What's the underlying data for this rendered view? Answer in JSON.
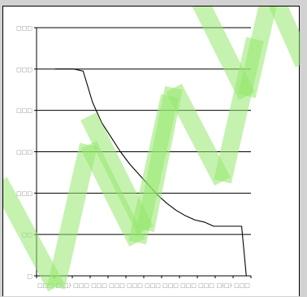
{
  "chart_data": {
    "type": "line",
    "title": "",
    "xlabel": "",
    "ylabel": "",
    "y_tick_labels": [
      "□",
      "□□",
      "□□□",
      "□□□",
      "□□□",
      "□□□",
      "□□□"
    ],
    "x_tick_labels": [
      "□□□",
      "□(□)",
      "□□□",
      "□□□",
      "□□□",
      "□□□",
      "□□□",
      "□□□",
      "□□□",
      "□□□",
      "□(□)",
      "□□□"
    ],
    "x": [
      0,
      0.5,
      1,
      1.5,
      2,
      2.5,
      3,
      3.5,
      4,
      4.5,
      5,
      5.5,
      6,
      6.5,
      7,
      7.5,
      8,
      8.5,
      9,
      9.5,
      10,
      10.25,
      10.5
    ],
    "series": [
      {
        "name": "",
        "values": [
          5,
          5,
          5,
          4.95,
          4.2,
          3.7,
          3.35,
          3.0,
          2.7,
          2.45,
          2.2,
          1.95,
          1.75,
          1.58,
          1.45,
          1.35,
          1.3,
          1.2,
          1.2,
          1.2,
          1.2,
          0.0,
          0.0
        ]
      }
    ],
    "xlim": [
      -1,
      10.5
    ],
    "ylim": [
      0,
      6
    ],
    "grid": "horizontal",
    "legend": "none",
    "colors": {
      "line": "#000000",
      "grid": "#000000",
      "background": "#ffffff",
      "frame": "#d2d2d2"
    }
  },
  "watermark": "WWW"
}
